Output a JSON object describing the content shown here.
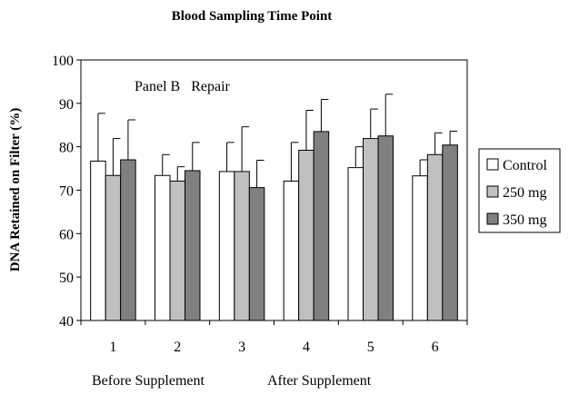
{
  "chart_data": {
    "type": "bar",
    "title": "Blood Sampling Time Point",
    "xlabel": "",
    "ylabel": "DNA Retained on Filter (%)",
    "annotation": "Panel B   Repair",
    "group_labels": [
      "Before Supplement",
      "After Supplement"
    ],
    "categories": [
      "1",
      "2",
      "3",
      "4",
      "5",
      "6"
    ],
    "ylim": [
      40,
      100
    ],
    "yticks": [
      40,
      50,
      60,
      70,
      80,
      90,
      100
    ],
    "grid": false,
    "legend_position": "right",
    "series": [
      {
        "name": "Control",
        "color": "#ffffff",
        "values": [
          76.7,
          73.4,
          74.3,
          72.1,
          75.2,
          73.3
        ],
        "error": [
          11.0,
          4.8,
          6.7,
          8.9,
          4.8,
          3.7
        ]
      },
      {
        "name": "250 mg",
        "color": "#c0c0c0",
        "values": [
          73.4,
          72.1,
          74.3,
          79.2,
          81.9,
          78.2
        ],
        "error": [
          8.5,
          3.3,
          10.3,
          9.2,
          6.8,
          5.0
        ]
      },
      {
        "name": "350 mg",
        "color": "#808080",
        "values": [
          77.0,
          74.5,
          70.6,
          83.5,
          82.5,
          80.4
        ],
        "error": [
          9.2,
          6.5,
          6.3,
          7.4,
          9.6,
          3.2
        ]
      }
    ]
  }
}
